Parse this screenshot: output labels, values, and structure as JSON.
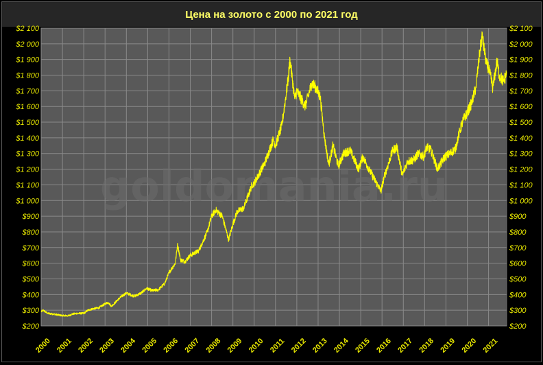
{
  "chart_data": {
    "type": "line",
    "title": "Цена на золото с 2000 по 2021 год",
    "watermark": "goldomania.ru",
    "xlabel": "",
    "ylabel": "",
    "xlim": [
      2000,
      2021.85
    ],
    "ylim": [
      200,
      2100
    ],
    "grid": true,
    "legend": "none",
    "line_color": "#ffff00",
    "plot_background": "#595959",
    "title_background": "#262626",
    "x_tick_labels": [
      "2000",
      "2001",
      "2002",
      "2003",
      "2004",
      "2005",
      "2006",
      "2007",
      "2008",
      "2009",
      "2010",
      "2011",
      "2012",
      "2013",
      "2014",
      "2015",
      "2016",
      "2017",
      "2018",
      "2019",
      "2020",
      "2021"
    ],
    "y_tick_labels": [
      "$200",
      "$300",
      "$400",
      "$500",
      "$600",
      "$700",
      "$800",
      "$900",
      "$1 000",
      "$1 100",
      "$1 200",
      "$1 300",
      "$1 400",
      "$1 500",
      "$1 600",
      "$1 700",
      "$1 800",
      "$1 900",
      "$2 000",
      "$2 100"
    ],
    "y_ticks": [
      200,
      300,
      400,
      500,
      600,
      700,
      800,
      900,
      1000,
      1100,
      1200,
      1300,
      1400,
      1500,
      1600,
      1700,
      1800,
      1900,
      2000,
      2100
    ],
    "series": [
      {
        "x": [
          2000.0,
          2000.1,
          2000.3,
          2000.6,
          2000.8,
          2001.0,
          2001.3,
          2001.45,
          2001.7,
          2002.0,
          2002.2,
          2002.45,
          2002.7,
          2003.0,
          2003.15,
          2003.3,
          2003.7,
          2004.0,
          2004.25,
          2004.4,
          2004.7,
          2004.95,
          2005.2,
          2005.5,
          2005.8,
          2006.0,
          2006.3,
          2006.4,
          2006.55,
          2006.75,
          2007.0,
          2007.4,
          2007.8,
          2008.0,
          2008.2,
          2008.5,
          2008.8,
          2009.0,
          2009.2,
          2009.5,
          2009.9,
          2010.0,
          2010.5,
          2010.9,
          2011.0,
          2011.3,
          2011.6,
          2011.68,
          2011.9,
          2012.0,
          2012.4,
          2012.7,
          2012.9,
          2013.1,
          2013.3,
          2013.5,
          2013.7,
          2013.95,
          2014.2,
          2014.5,
          2014.9,
          2015.1,
          2015.5,
          2015.95,
          2016.1,
          2016.5,
          2016.7,
          2016.95,
          2017.2,
          2017.5,
          2017.7,
          2017.95,
          2018.1,
          2018.3,
          2018.6,
          2018.95,
          2019.2,
          2019.45,
          2019.6,
          2019.8,
          2020.0,
          2020.2,
          2020.4,
          2020.6,
          2020.7,
          2020.9,
          2021.0,
          2021.2,
          2021.4,
          2021.5,
          2021.7,
          2021.85
        ],
        "values": [
          290,
          300,
          280,
          275,
          270,
          265,
          265,
          275,
          280,
          280,
          300,
          310,
          315,
          340,
          350,
          325,
          380,
          410,
          395,
          390,
          410,
          440,
          425,
          430,
          470,
          540,
          600,
          720,
          620,
          610,
          650,
          680,
          800,
          900,
          940,
          900,
          750,
          850,
          930,
          950,
          1100,
          1110,
          1240,
          1390,
          1350,
          1480,
          1780,
          1900,
          1650,
          1700,
          1600,
          1750,
          1720,
          1660,
          1400,
          1230,
          1350,
          1220,
          1300,
          1320,
          1200,
          1280,
          1170,
          1060,
          1150,
          1320,
          1340,
          1160,
          1250,
          1260,
          1300,
          1280,
          1340,
          1320,
          1200,
          1280,
          1300,
          1330,
          1420,
          1510,
          1560,
          1620,
          1720,
          1960,
          2050,
          1870,
          1850,
          1720,
          1890,
          1800,
          1760,
          1810
        ]
      }
    ]
  }
}
